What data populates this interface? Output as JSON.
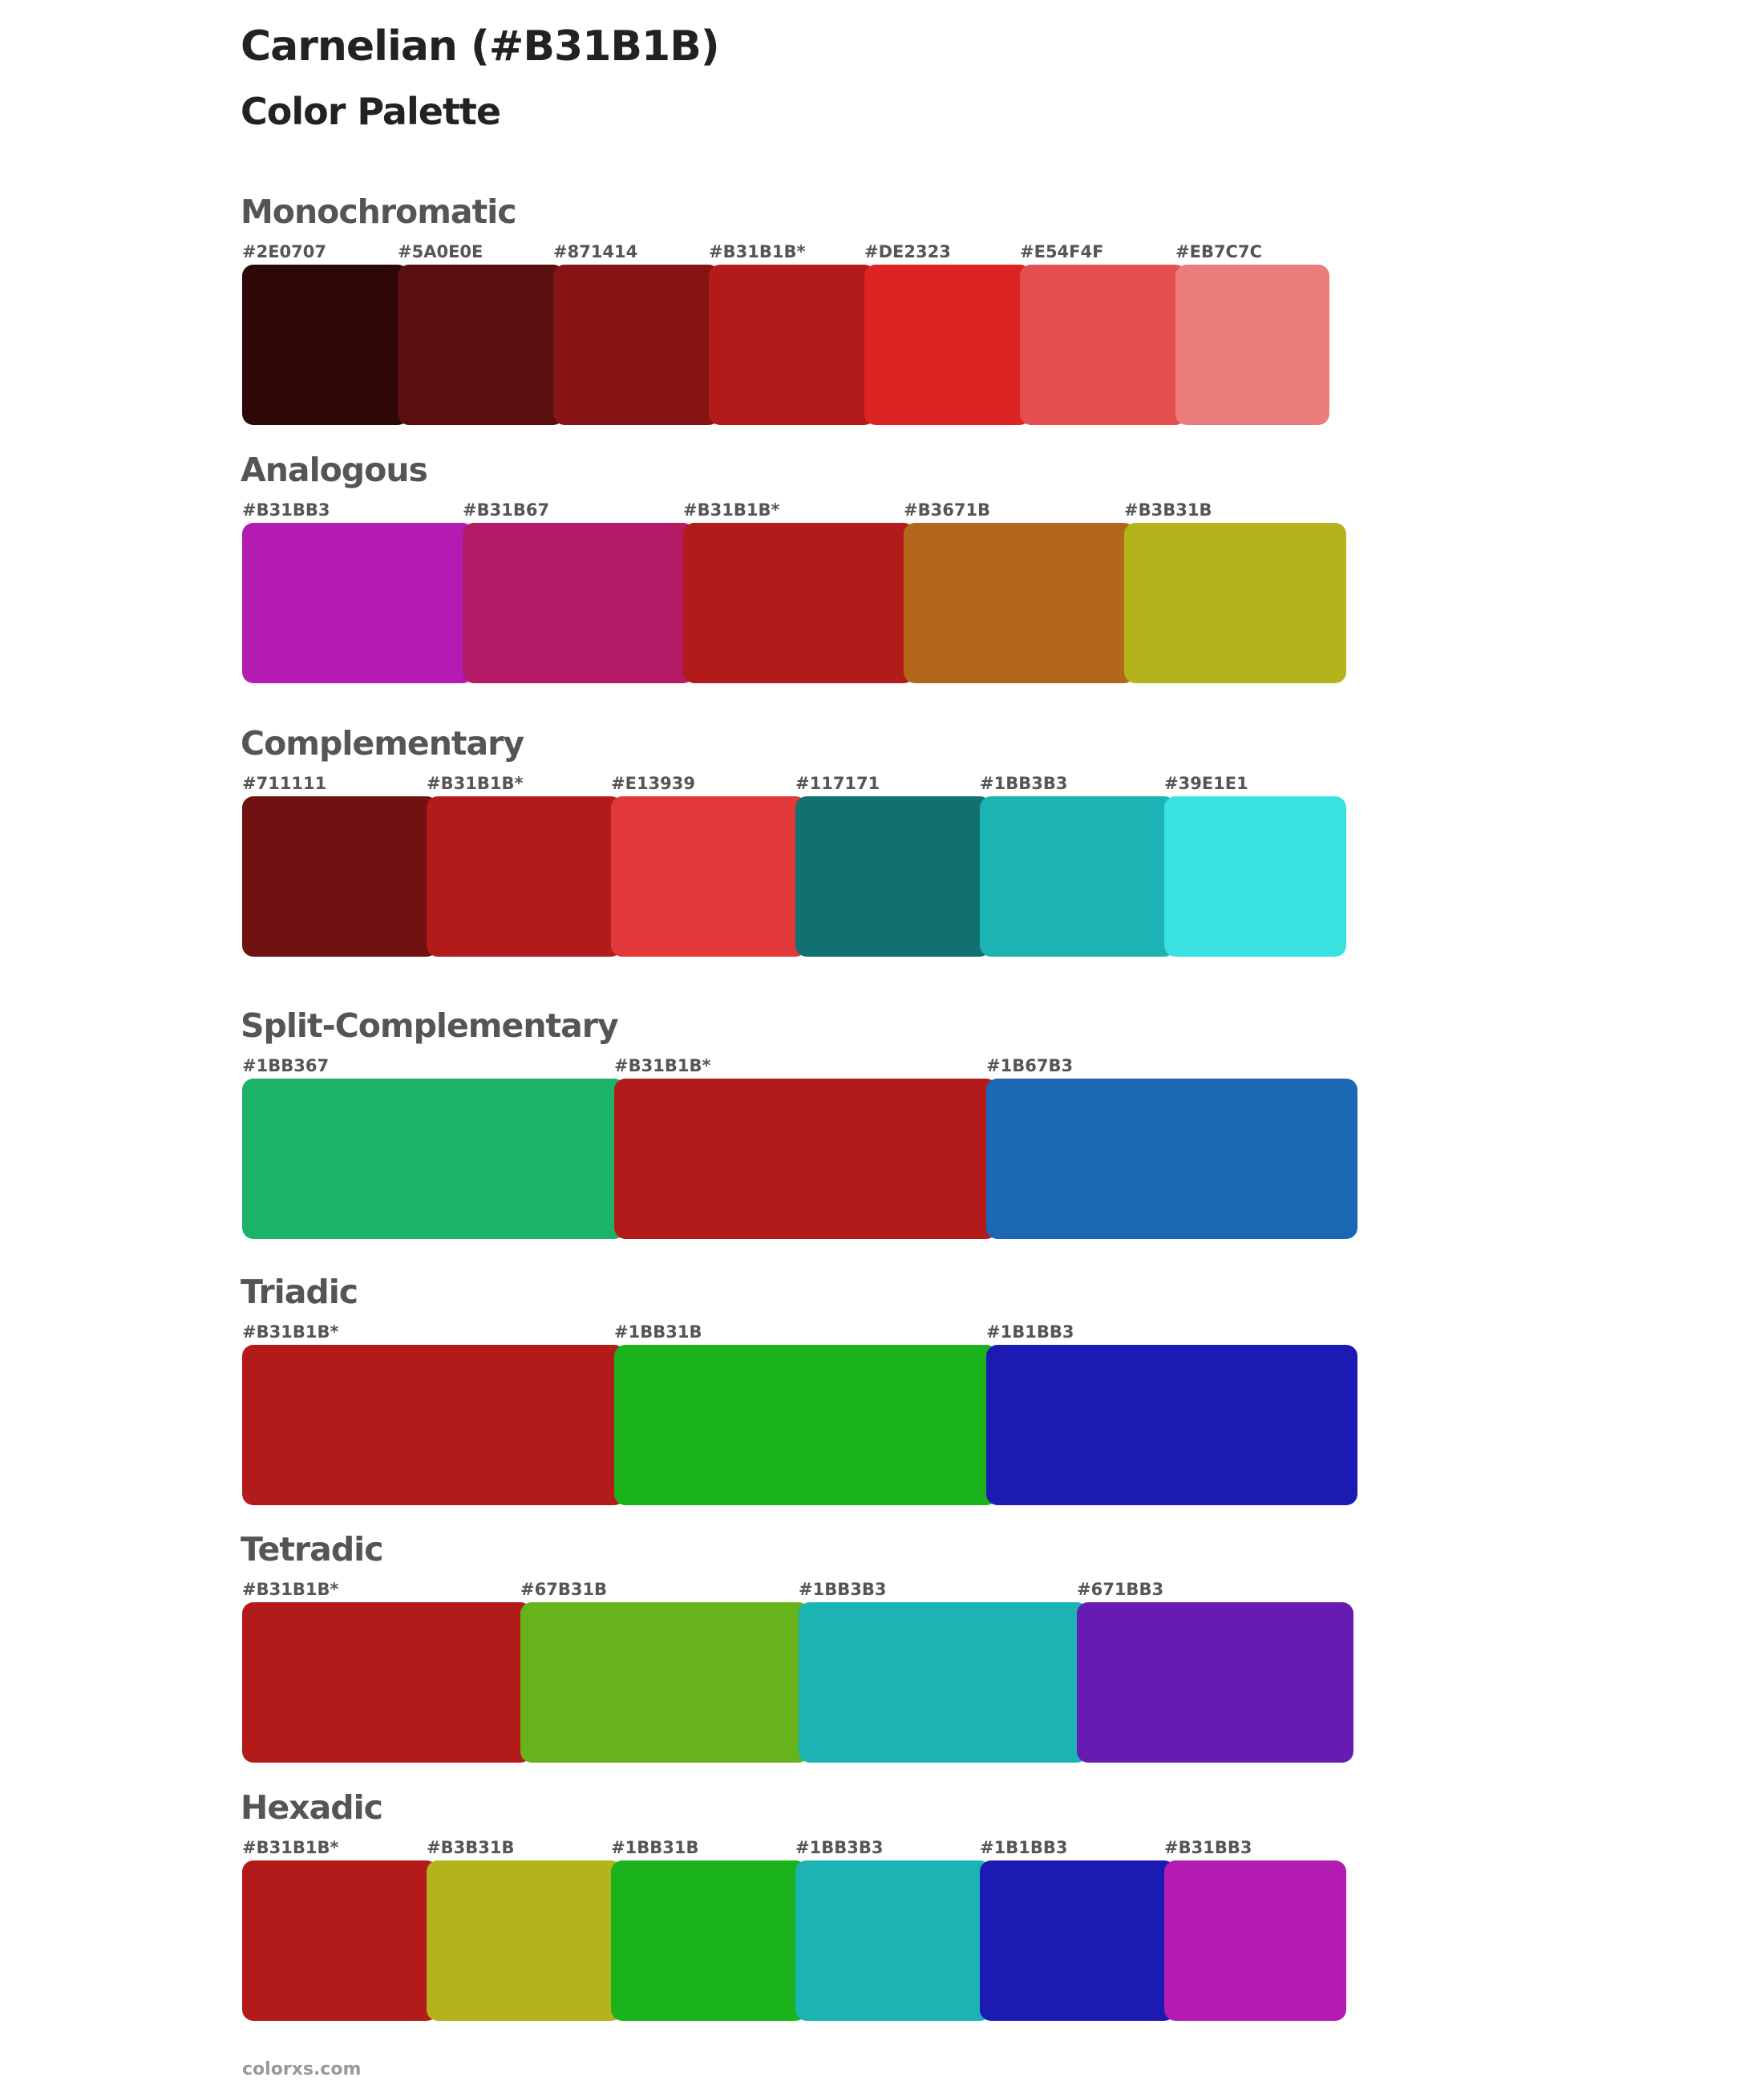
{
  "header": {
    "title": "Carnelian (#B31B1B)",
    "subtitle": "Color Palette"
  },
  "palettes": [
    {
      "name": "Monochromatic",
      "colors": [
        {
          "label": "#2E0707",
          "hex": "#2E0707"
        },
        {
          "label": "#5A0E0E",
          "hex": "#5A0E0E"
        },
        {
          "label": "#871414",
          "hex": "#871414"
        },
        {
          "label": "#B31B1B*",
          "hex": "#B31B1B"
        },
        {
          "label": "#DE2323",
          "hex": "#DE2323"
        },
        {
          "label": "#E54F4F",
          "hex": "#E54F4F"
        },
        {
          "label": "#EB7C7C",
          "hex": "#EB7C7C"
        }
      ]
    },
    {
      "name": "Analogous",
      "colors": [
        {
          "label": "#B31BB3",
          "hex": "#B31BB3"
        },
        {
          "label": "#B31B67",
          "hex": "#B31B67"
        },
        {
          "label": "#B31B1B*",
          "hex": "#B31B1B"
        },
        {
          "label": "#B3671B",
          "hex": "#B3671B"
        },
        {
          "label": "#B3B31B",
          "hex": "#B3B31B"
        }
      ]
    },
    {
      "name": "Complementary",
      "colors": [
        {
          "label": "#711111",
          "hex": "#711111"
        },
        {
          "label": "#B31B1B*",
          "hex": "#B31B1B"
        },
        {
          "label": "#E13939",
          "hex": "#E13939"
        },
        {
          "label": "#117171",
          "hex": "#117171"
        },
        {
          "label": "#1BB3B3",
          "hex": "#1BB3B3"
        },
        {
          "label": "#39E1E1",
          "hex": "#39E1E1"
        }
      ]
    },
    {
      "name": "Split-Complementary",
      "colors": [
        {
          "label": "#1BB367",
          "hex": "#1BB367"
        },
        {
          "label": "#B31B1B*",
          "hex": "#B31B1B"
        },
        {
          "label": "#1B67B3",
          "hex": "#1B67B3"
        }
      ]
    },
    {
      "name": "Triadic",
      "colors": [
        {
          "label": "#B31B1B*",
          "hex": "#B31B1B"
        },
        {
          "label": "#1BB31B",
          "hex": "#1BB31B"
        },
        {
          "label": "#1B1BB3",
          "hex": "#1B1BB3"
        }
      ]
    },
    {
      "name": "Tetradic",
      "colors": [
        {
          "label": "#B31B1B*",
          "hex": "#B31B1B"
        },
        {
          "label": "#67B31B",
          "hex": "#67B31B"
        },
        {
          "label": "#1BB3B3",
          "hex": "#1BB3B3"
        },
        {
          "label": "#671BB3",
          "hex": "#671BB3"
        }
      ]
    },
    {
      "name": "Hexadic",
      "colors": [
        {
          "label": "#B31B1B*",
          "hex": "#B31B1B"
        },
        {
          "label": "#B3B31B",
          "hex": "#B3B31B"
        },
        {
          "label": "#1BB31B",
          "hex": "#1BB31B"
        },
        {
          "label": "#1BB3B3",
          "hex": "#1BB3B3"
        },
        {
          "label": "#1B1BB3",
          "hex": "#1B1BB3"
        },
        {
          "label": "#B31BB3",
          "hex": "#B31BB3"
        }
      ]
    }
  ],
  "footer": {
    "text": "colorxs.com"
  }
}
